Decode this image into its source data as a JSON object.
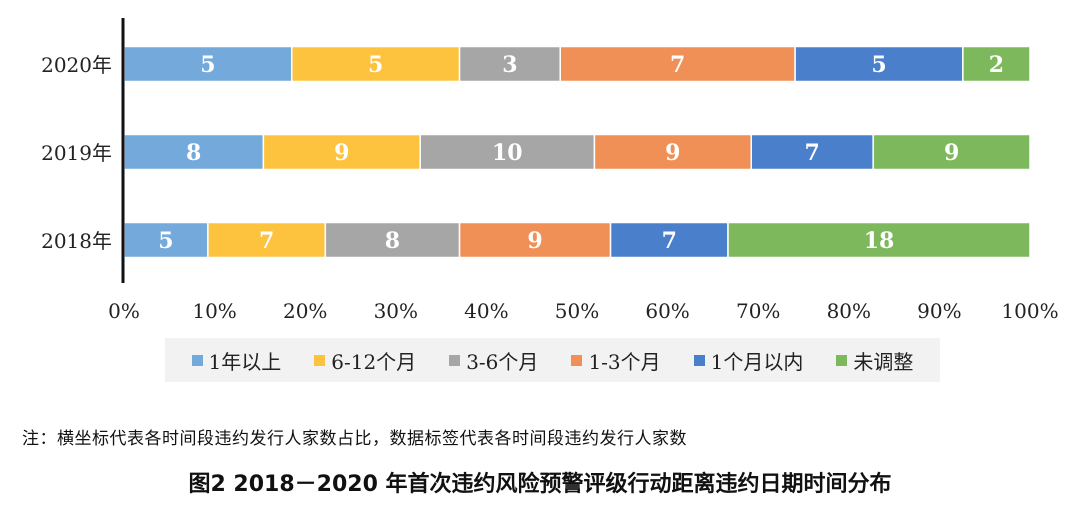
{
  "chart_data": {
    "type": "bar",
    "orientation": "horizontal",
    "stacked": true,
    "normalized": true,
    "categories": [
      "2020年",
      "2019年",
      "2018年"
    ],
    "series": [
      {
        "name": "1年以上",
        "color": "#74a9dc",
        "values": [
          5,
          8,
          5
        ]
      },
      {
        "name": "6-12个月",
        "color": "#fdc33f",
        "values": [
          5,
          9,
          7
        ]
      },
      {
        "name": "3-6个月",
        "color": "#a6a6a6",
        "values": [
          3,
          10,
          8
        ]
      },
      {
        "name": "1-3个月",
        "color": "#f08f56",
        "values": [
          7,
          9,
          9
        ]
      },
      {
        "name": "1个月以内",
        "color": "#4a7fcc",
        "values": [
          5,
          7,
          7
        ]
      },
      {
        "name": "未调整",
        "color": "#7db85c",
        "values": [
          2,
          9,
          18
        ]
      }
    ],
    "x_ticks": [
      "0%",
      "10%",
      "20%",
      "30%",
      "40%",
      "50%",
      "60%",
      "70%",
      "80%",
      "90%",
      "100%"
    ],
    "xlim": [
      0,
      100
    ],
    "grid": false,
    "legend_position": "bottom"
  },
  "note": "注：横坐标代表各时间段违约发行人家数占比，数据标签代表各时间段违约发行人家数",
  "caption": "图2 2018－2020 年首次违约风险预警评级行动距离违约日期时间分布"
}
